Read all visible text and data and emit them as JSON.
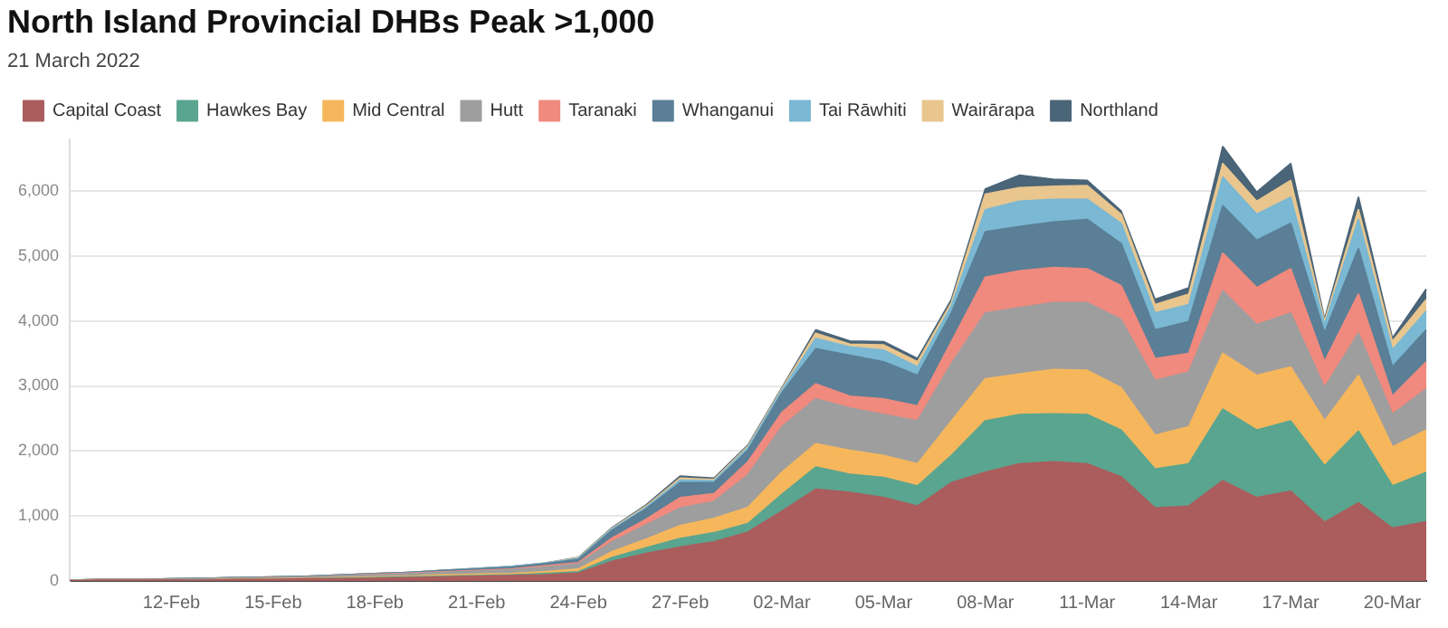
{
  "chart_data": {
    "type": "area",
    "title": "North Island Provincial DHBs Peak >1,000",
    "subtitle": "21 March 2022",
    "stacked": true,
    "legend": "top",
    "grid": "y",
    "marker": "none",
    "categories": [
      null,
      null,
      null,
      "12-Feb",
      null,
      null,
      "15-Feb",
      null,
      null,
      "18-Feb",
      null,
      null,
      "21-Feb",
      null,
      null,
      "24-Feb",
      null,
      null,
      "27-Feb",
      null,
      null,
      "02-Mar",
      null,
      null,
      "05-Mar",
      null,
      null,
      "08-Mar",
      null,
      null,
      "11-Mar",
      null,
      null,
      "14-Mar",
      null,
      null,
      "17-Mar",
      null,
      null,
      "20-Mar",
      null
    ],
    "ylim": [
      0,
      6800
    ],
    "yticks": [
      0,
      {
        "value": 1000,
        "label": "1,000"
      },
      {
        "value": 2000,
        "label": "2,000"
      },
      {
        "value": 3000,
        "label": "3,000"
      },
      {
        "value": 4000,
        "label": "4,000"
      },
      {
        "value": 5000,
        "label": "5,000"
      },
      {
        "value": 6000,
        "label": "6,000"
      }
    ],
    "series": [
      {
        "name": "Capital Coast",
        "color": "#ab5d5d",
        "values": [
          0,
          10,
          10,
          10,
          10,
          20,
          20,
          30,
          30,
          40,
          50,
          60,
          70,
          80,
          90,
          120,
          300,
          420,
          520,
          600,
          750,
          1070,
          1410,
          1360,
          1280,
          1150,
          1510,
          1670,
          1800,
          1830,
          1800,
          1600,
          1120,
          1150,
          1540,
          1280,
          1380,
          900,
          1200,
          810,
          910
        ]
      },
      {
        "name": "Hawkes Bay",
        "color": "#5aa58f",
        "values": [
          0,
          0,
          0,
          0,
          0,
          0,
          0,
          0,
          10,
          10,
          10,
          10,
          10,
          10,
          20,
          20,
          60,
          90,
          130,
          140,
          130,
          260,
          340,
          280,
          310,
          310,
          420,
          790,
          760,
          740,
          760,
          720,
          600,
          650,
          1100,
          1040,
          1080,
          870,
          1100,
          650,
          760
        ]
      },
      {
        "name": "Mid Central",
        "color": "#f6b75c",
        "values": [
          0,
          0,
          0,
          0,
          0,
          10,
          10,
          10,
          10,
          10,
          10,
          20,
          20,
          20,
          30,
          40,
          90,
          130,
          200,
          220,
          250,
          340,
          360,
          370,
          340,
          340,
          530,
          650,
          620,
          680,
          680,
          650,
          520,
          570,
          860,
          840,
          830,
          690,
          860,
          600,
          650
        ]
      },
      {
        "name": "Hutt",
        "color": "#9e9e9e",
        "values": [
          10,
          10,
          10,
          10,
          20,
          10,
          20,
          20,
          30,
          30,
          40,
          40,
          50,
          60,
          70,
          80,
          150,
          220,
          270,
          260,
          500,
          700,
          690,
          650,
          630,
          660,
          880,
          1010,
          1020,
          1030,
          1040,
          1050,
          840,
          840,
          960,
          780,
          830,
          510,
          650,
          500,
          630
        ]
      },
      {
        "name": "Taranaki",
        "color": "#f08a7e",
        "values": [
          0,
          0,
          0,
          0,
          0,
          0,
          0,
          0,
          0,
          10,
          10,
          10,
          10,
          10,
          20,
          20,
          60,
          90,
          160,
          120,
          200,
          220,
          230,
          180,
          240,
          230,
          340,
          550,
          570,
          540,
          520,
          520,
          340,
          290,
          580,
          570,
          680,
          400,
          600,
          280,
          420
        ]
      },
      {
        "name": "Whanganui",
        "color": "#5a7f96",
        "values": [
          0,
          0,
          0,
          10,
          10,
          10,
          10,
          10,
          10,
          10,
          10,
          20,
          20,
          30,
          30,
          50,
          120,
          160,
          230,
          170,
          180,
          300,
          540,
          630,
          570,
          470,
          440,
          700,
          680,
          700,
          760,
          650,
          440,
          490,
          730,
          730,
          700,
          440,
          700,
          450,
          490
        ]
      },
      {
        "name": "Tai Rāwhiti",
        "color": "#7ab8d3",
        "values": [
          0,
          0,
          0,
          0,
          0,
          0,
          0,
          0,
          0,
          0,
          0,
          0,
          10,
          10,
          10,
          10,
          20,
          20,
          40,
          30,
          40,
          40,
          160,
          130,
          180,
          130,
          110,
          340,
          390,
          350,
          310,
          310,
          260,
          260,
          440,
          400,
          400,
          130,
          450,
          260,
          290
        ]
      },
      {
        "name": "Wairārapa",
        "color": "#e8c68e",
        "values": [
          0,
          0,
          0,
          0,
          0,
          0,
          0,
          0,
          0,
          0,
          0,
          0,
          0,
          0,
          0,
          10,
          10,
          20,
          30,
          20,
          20,
          20,
          80,
          40,
          80,
          80,
          50,
          240,
          210,
          200,
          210,
          140,
          130,
          160,
          210,
          200,
          260,
          50,
          150,
          130,
          180
        ]
      },
      {
        "name": "Northland",
        "color": "#4a6478",
        "values": [
          0,
          0,
          0,
          0,
          0,
          0,
          0,
          0,
          0,
          0,
          0,
          0,
          0,
          0,
          0,
          10,
          10,
          20,
          30,
          20,
          20,
          20,
          50,
          50,
          50,
          50,
          50,
          80,
          190,
          110,
          80,
          50,
          80,
          100,
          260,
          140,
          260,
          30,
          190,
          50,
          160
        ]
      }
    ]
  }
}
